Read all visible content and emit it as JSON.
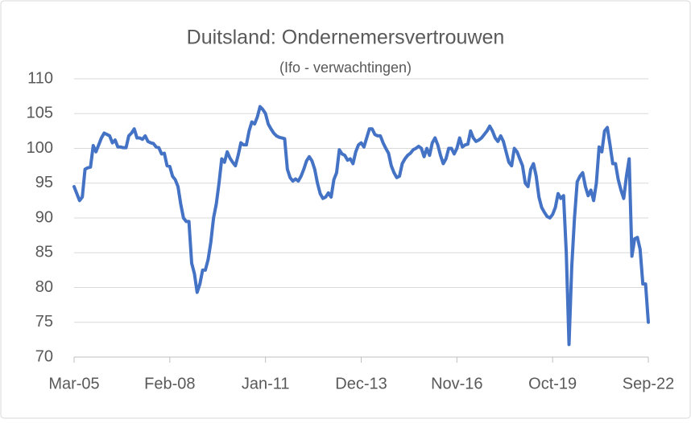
{
  "chart_data": {
    "type": "line",
    "title": "Duitsland: Ondernemersvertrouwen",
    "subtitle": "(Ifo - verwachtingen)",
    "categories": [
      "Mar-05",
      null,
      null,
      null,
      null,
      null,
      null,
      null,
      null,
      null,
      null,
      null,
      null,
      null,
      null,
      null,
      null,
      null,
      null,
      null,
      null,
      null,
      null,
      null,
      null,
      null,
      null,
      null,
      null,
      null,
      null,
      null,
      null,
      null,
      null,
      "Feb-08",
      null,
      null,
      null,
      null,
      null,
      null,
      null,
      null,
      null,
      null,
      null,
      null,
      null,
      null,
      null,
      null,
      null,
      null,
      null,
      null,
      null,
      null,
      null,
      null,
      null,
      null,
      null,
      null,
      null,
      null,
      null,
      null,
      null,
      null,
      "Jan-11",
      null,
      null,
      null,
      null,
      null,
      null,
      null,
      null,
      null,
      null,
      null,
      null,
      null,
      null,
      null,
      null,
      null,
      null,
      null,
      null,
      null,
      null,
      null,
      null,
      null,
      null,
      null,
      null,
      null,
      null,
      null,
      null,
      null,
      null,
      "Dec-13",
      null,
      null,
      null,
      null,
      null,
      null,
      null,
      null,
      null,
      null,
      null,
      null,
      null,
      null,
      null,
      null,
      null,
      null,
      null,
      null,
      null,
      null,
      null,
      null,
      null,
      null,
      null,
      null,
      null,
      null,
      null,
      null,
      null,
      null,
      "Nov-16",
      null,
      null,
      null,
      null,
      null,
      null,
      null,
      null,
      null,
      null,
      null,
      null,
      null,
      null,
      null,
      null,
      null,
      null,
      null,
      null,
      null,
      null,
      null,
      null,
      null,
      null,
      null,
      null,
      null,
      null,
      null,
      null,
      null,
      null,
      "Oct-19",
      null,
      null,
      null,
      null,
      null,
      null,
      null,
      null,
      null,
      null,
      null,
      null,
      null,
      null,
      null,
      null,
      null,
      null,
      null,
      null,
      null,
      null,
      null,
      null,
      null,
      null,
      null,
      null,
      null,
      null,
      null,
      null,
      null,
      null,
      "Sep-22"
    ],
    "series": [
      {
        "name": "Ifo - verwachtingen",
        "color": "#4472c4",
        "values": [
          94.5,
          93.5,
          92.5,
          93,
          97,
          97.2,
          97.3,
          100.4,
          99.5,
          100.5,
          101.5,
          102.2,
          102,
          101.8,
          100.8,
          101.2,
          100.2,
          100.2,
          100.1,
          100.1,
          101.8,
          102.2,
          102.8,
          101.5,
          101.5,
          101.3,
          101.8,
          101,
          100.8,
          100.7,
          100.2,
          100.1,
          99.2,
          99.3,
          97.5,
          97.4,
          96,
          95.5,
          94.5,
          92,
          90,
          89.5,
          89.5,
          83.5,
          82,
          79.3,
          80.5,
          82.5,
          82.5,
          84,
          86.5,
          90,
          92,
          95,
          98.5,
          98,
          99.5,
          98.6,
          98,
          97.5,
          99,
          100.8,
          100.5,
          100.5,
          102.5,
          103.8,
          103.5,
          104.5,
          106,
          105.6,
          105,
          103.5,
          102.8,
          102.2,
          101.8,
          101.6,
          101.5,
          101.4,
          97,
          95.8,
          95.3,
          95.6,
          95.3,
          96,
          97,
          98.2,
          98.8,
          98.2,
          97,
          95,
          93.5,
          92.8,
          93,
          93.6,
          93,
          95.5,
          96.5,
          99.8,
          99.2,
          99,
          98.3,
          98.5,
          97.8,
          99.5,
          100.5,
          100.8,
          100.2,
          101.5,
          102.8,
          102.8,
          102,
          101.8,
          101.8,
          100.8,
          100,
          99.3,
          97.5,
          96.5,
          95.8,
          96,
          97.8,
          98.5,
          99,
          99.3,
          99.8,
          100,
          100.3,
          100,
          98.8,
          100,
          99,
          100.8,
          101.5,
          100.5,
          99,
          97.8,
          98.5,
          100,
          100,
          99.2,
          100,
          101.5,
          100.2,
          100.5,
          100.6,
          102.5,
          101.5,
          101,
          101.2,
          101.5,
          102,
          102.5,
          103.2,
          102.5,
          101.5,
          101,
          101.8,
          101,
          99.5,
          98,
          97.5,
          100,
          99.5,
          98.5,
          97.5,
          95,
          94.5,
          97,
          97.8,
          96,
          93,
          91.5,
          90.8,
          90.2,
          90,
          90.5,
          91.5,
          93.5,
          92.8,
          93.2,
          85,
          71.8,
          83,
          90,
          95.2,
          96,
          96.5,
          94.5,
          93.2,
          94,
          92.5,
          95,
          100.2,
          99.5,
          102.5,
          103,
          100.5,
          97.8,
          97.8,
          95.5,
          94,
          92.8,
          96,
          98.5,
          84.5,
          87,
          87.2,
          85.5,
          80.5,
          80.5,
          75
        ]
      }
    ],
    "ylim": [
      70,
      110
    ],
    "yticks": [
      70,
      75,
      80,
      85,
      90,
      95,
      100,
      105,
      110
    ],
    "grid": true
  }
}
